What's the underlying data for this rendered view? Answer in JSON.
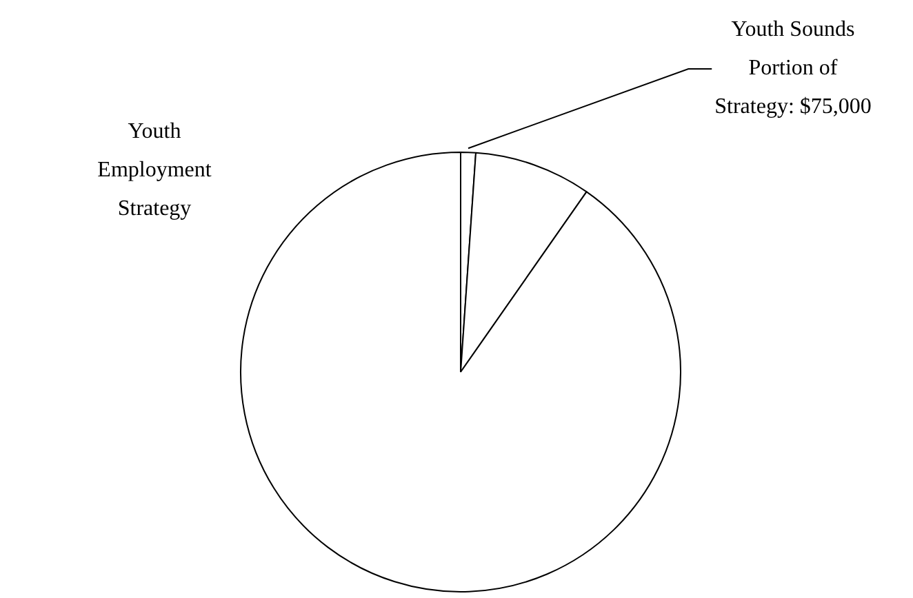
{
  "chart_data": {
    "type": "pie",
    "categories": [
      "Youth Sounds Portion of Strategy: $75,000",
      null,
      "Youth Employment Strategy"
    ],
    "values": [
      1.1,
      8.6,
      90.3
    ],
    "colors": [
      "#ffffff",
      "#ffffff",
      "#ffffff"
    ],
    "legend": false
  }
}
